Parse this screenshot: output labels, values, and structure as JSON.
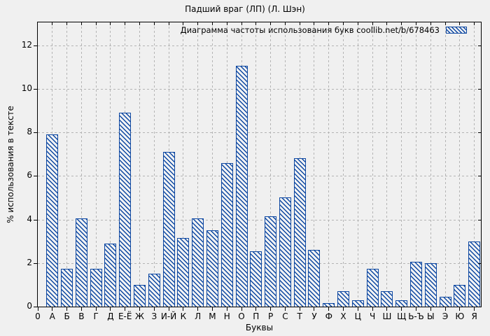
{
  "page": {
    "background": "#f0f0f0"
  },
  "chart_data": {
    "type": "bar",
    "title": "Падший враг (ЛП) (Л. Шэн)",
    "legend": {
      "label": "Диаграмма частоты использования букв coollib.net/b/678463",
      "position": "top-right",
      "swatch": "blue-diagonal-hatch"
    },
    "xlabel": "Буквы",
    "ylabel": "% использования в тексте",
    "x_origin_label": "0",
    "categories": [
      "А",
      "Б",
      "В",
      "Г",
      "Д",
      "Е-Ё",
      "Ж",
      "З",
      "И-Й",
      "К",
      "Л",
      "М",
      "Н",
      "О",
      "П",
      "Р",
      "С",
      "Т",
      "У",
      "Ф",
      "Х",
      "Ц",
      "Ч",
      "Ш",
      "Щ",
      "Ь-Ъ",
      "Ы",
      "Э",
      "Ю",
      "Я"
    ],
    "values": [
      7.9,
      1.75,
      4.05,
      1.75,
      2.9,
      8.9,
      1.0,
      1.5,
      7.1,
      3.15,
      4.05,
      3.5,
      6.6,
      11.05,
      2.55,
      4.15,
      5.0,
      6.8,
      2.6,
      0.15,
      0.7,
      0.3,
      1.75,
      0.7,
      0.3,
      2.05,
      2.0,
      0.45,
      1.0,
      3.0
    ],
    "yticks": [
      0,
      2,
      4,
      6,
      8,
      10,
      12
    ],
    "ylim": [
      0,
      13.05
    ],
    "grid": true,
    "bar_fill": "hatch",
    "colors": {
      "bar": "#0d47a1",
      "grid": "#b4b4b4",
      "axis": "#000000",
      "text": "#000000",
      "background": "#f0f0f0"
    }
  }
}
